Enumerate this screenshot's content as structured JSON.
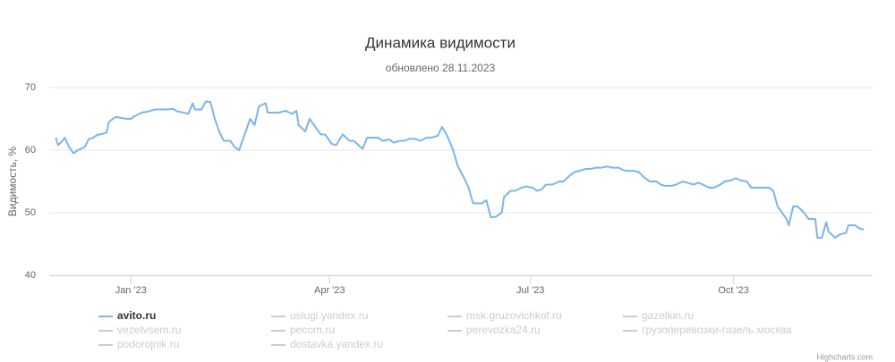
{
  "chart_data": {
    "type": "line",
    "title": "Динамика видимости",
    "subtitle": "обновлено 28.11.2023",
    "y_label": "Видимость, %",
    "credits": "Highcharts.com",
    "ylim": [
      40,
      70
    ],
    "yticks": [
      40,
      50,
      60,
      70
    ],
    "xlim": [
      -37,
      336
    ],
    "xticks": [
      {
        "value": 0,
        "label": "Jan '23"
      },
      {
        "value": 90,
        "label": "Apr '23"
      },
      {
        "value": 181,
        "label": "Jul '23"
      },
      {
        "value": 273,
        "label": "Oct '23"
      }
    ],
    "grid": true,
    "x": [
      -34,
      -33,
      -31,
      -30,
      -28,
      -26,
      -24,
      -21,
      -19,
      -17,
      -15,
      -14,
      -11,
      -10,
      -7,
      -5,
      -2,
      0,
      2,
      5,
      8,
      11,
      13,
      16,
      19,
      21,
      24,
      26,
      28,
      29,
      32,
      34,
      36,
      38,
      40,
      42,
      45,
      47,
      49,
      51,
      54,
      56,
      58,
      61,
      62,
      65,
      67,
      70,
      73,
      75,
      76,
      79,
      81,
      84,
      86,
      88,
      91,
      93,
      95,
      96,
      99,
      101,
      104,
      105,
      107,
      109,
      112,
      114,
      117,
      119,
      122,
      124,
      126,
      129,
      131,
      134,
      136,
      139,
      141,
      143,
      146,
      148,
      151,
      153,
      155,
      156,
      159,
      161,
      163,
      165,
      168,
      169,
      172,
      174,
      177,
      179,
      182,
      184,
      186,
      188,
      191,
      194,
      196,
      199,
      201,
      204,
      206,
      208,
      211,
      213,
      216,
      218,
      221,
      223,
      225,
      228,
      230,
      233,
      235,
      238,
      240,
      242,
      245,
      247,
      250,
      252,
      255,
      257,
      259,
      262,
      264,
      267,
      269,
      272,
      274,
      276,
      279,
      281,
      284,
      286,
      289,
      291,
      293,
      294,
      297,
      298,
      300,
      302,
      305,
      307,
      310,
      311,
      313,
      315,
      316,
      319,
      321,
      324,
      325,
      328,
      330,
      332
    ],
    "series": [
      {
        "name": "avito.ru",
        "color": "#7cb5ec",
        "visible": true,
        "values": [
          62,
          60.8,
          61.5,
          62,
          60.5,
          59.5,
          60,
          60.5,
          61.8,
          62,
          62.5,
          62.5,
          62.8,
          64.5,
          65.3,
          65.2,
          65,
          65,
          65.5,
          66,
          66.2,
          66.5,
          66.5,
          66.5,
          66.6,
          66.2,
          66,
          65.8,
          67.5,
          66.5,
          66.5,
          67.8,
          67.7,
          65,
          63,
          61.5,
          61.5,
          60.5,
          60,
          62,
          65,
          64,
          67,
          67.5,
          66,
          66,
          66,
          66.3,
          65.8,
          66.3,
          64,
          63,
          65,
          63.5,
          62.5,
          62.5,
          61,
          60.8,
          62,
          62.5,
          61.5,
          61.5,
          60.5,
          60.2,
          62,
          62,
          62,
          61.5,
          61.7,
          61.2,
          61.5,
          61.5,
          61.8,
          61.8,
          61.5,
          62,
          62,
          62.3,
          63.7,
          62.5,
          60,
          57.5,
          55.5,
          54,
          51.5,
          51.5,
          51.5,
          52,
          49.3,
          49.3,
          50,
          52.5,
          53.5,
          53.5,
          54,
          54.2,
          54,
          53.5,
          53.7,
          54.5,
          54.5,
          55,
          55,
          56,
          56.5,
          56.8,
          57,
          57,
          57.2,
          57.2,
          57.4,
          57.2,
          57.2,
          56.8,
          56.7,
          56.7,
          56.5,
          55.5,
          55,
          55,
          54.5,
          54.3,
          54.3,
          54.5,
          55,
          54.8,
          54.5,
          54.8,
          54.5,
          54,
          54,
          54.5,
          55,
          55.2,
          55.5,
          55.2,
          55,
          54,
          54,
          54,
          54,
          53.5,
          51,
          50.5,
          49,
          48,
          51,
          51,
          50,
          49,
          49,
          46,
          46,
          48.5,
          47,
          46,
          46.5,
          46.8,
          48,
          48,
          47.5,
          47.3
        ]
      },
      {
        "name": "uslugi.yandex.ru",
        "visible": false
      },
      {
        "name": "msk.gruzovichkof.ru",
        "visible": false
      },
      {
        "name": "gazelkin.ru",
        "visible": false
      },
      {
        "name": "vezetvsem.ru",
        "visible": false
      },
      {
        "name": "pecom.ru",
        "visible": false
      },
      {
        "name": "perevozka24.ru",
        "visible": false
      },
      {
        "name": "грузоперевозки-газель.москва",
        "visible": false
      },
      {
        "name": "podorojnik.ru",
        "visible": false
      },
      {
        "name": "dostavka.yandex.ru",
        "visible": false
      }
    ]
  }
}
